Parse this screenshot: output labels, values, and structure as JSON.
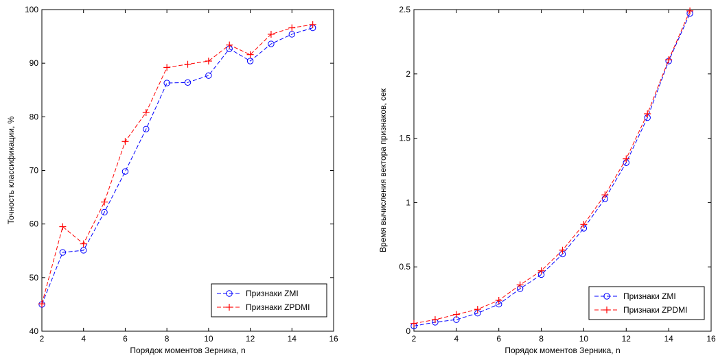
{
  "chart_data": [
    {
      "type": "line",
      "xlabel": "Порядок моментов Зерника, n",
      "ylabel": "Точность классификации, %",
      "xlim": [
        2,
        16
      ],
      "ylim": [
        40,
        100
      ],
      "xticks": [
        2,
        4,
        6,
        8,
        10,
        12,
        14,
        16
      ],
      "yticks": [
        40,
        50,
        60,
        70,
        80,
        90,
        100
      ],
      "x_tick_labels": [
        "2",
        "4",
        "6",
        "8",
        "10",
        "12",
        "14",
        "16"
      ],
      "y_tick_labels": [
        "40",
        "50",
        "60",
        "70",
        "80",
        "90",
        "100"
      ],
      "grid": false,
      "legend_position": "bottom-right",
      "x": [
        2,
        3,
        4,
        5,
        6,
        7,
        8,
        9,
        10,
        11,
        12,
        13,
        14,
        15
      ],
      "series": [
        {
          "name": "Признаки ZMI",
          "color": "#0000ff",
          "marker": "circle",
          "line_style": "dashed",
          "values": [
            45.0,
            54.7,
            55.1,
            62.2,
            69.8,
            77.7,
            86.3,
            86.4,
            87.7,
            92.7,
            90.4,
            93.6,
            95.4,
            96.6
          ]
        },
        {
          "name": "Признаки ZPDMI",
          "color": "#ff0000",
          "marker": "plus",
          "line_style": "dashed",
          "values": [
            45.1,
            59.5,
            56.3,
            64.1,
            75.4,
            80.8,
            89.2,
            89.8,
            90.4,
            93.4,
            91.6,
            95.4,
            96.6,
            97.2
          ]
        }
      ]
    },
    {
      "type": "line",
      "xlabel": "Порядок моментов Зерника, n",
      "ylabel": "Время вычисления вектора признаков, сек",
      "xlim": [
        2,
        16
      ],
      "ylim": [
        0,
        2.5
      ],
      "xticks": [
        2,
        4,
        6,
        8,
        10,
        12,
        14,
        16
      ],
      "yticks": [
        0,
        0.5,
        1,
        1.5,
        2,
        2.5
      ],
      "x_tick_labels": [
        "2",
        "4",
        "6",
        "8",
        "10",
        "12",
        "14",
        "16"
      ],
      "y_tick_labels": [
        "0",
        "0.5",
        "1",
        "1.5",
        "2",
        "2.5"
      ],
      "grid": false,
      "legend_position": "bottom-right",
      "x": [
        2,
        3,
        4,
        5,
        6,
        7,
        8,
        9,
        10,
        11,
        12,
        13,
        14,
        15
      ],
      "series": [
        {
          "name": "Признаки ZMI",
          "color": "#0000ff",
          "marker": "circle",
          "line_style": "dashed",
          "values": [
            0.04,
            0.07,
            0.09,
            0.14,
            0.21,
            0.33,
            0.44,
            0.6,
            0.8,
            1.03,
            1.31,
            1.66,
            2.1,
            2.47
          ]
        },
        {
          "name": "Признаки ZPDMI",
          "color": "#ff0000",
          "marker": "plus",
          "line_style": "dashed",
          "values": [
            0.06,
            0.09,
            0.13,
            0.17,
            0.24,
            0.36,
            0.47,
            0.63,
            0.83,
            1.06,
            1.34,
            1.69,
            2.11,
            2.49
          ]
        }
      ]
    }
  ]
}
